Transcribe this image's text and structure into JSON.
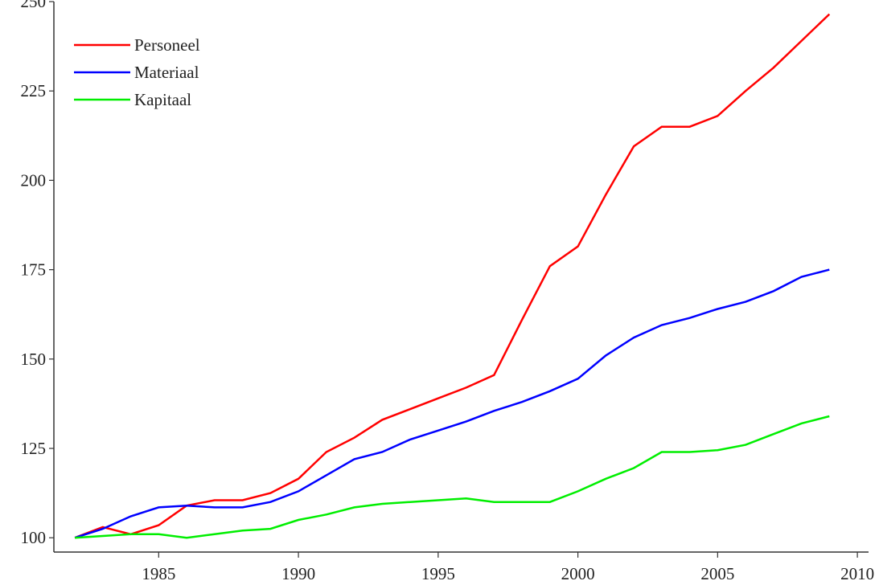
{
  "chart_data": {
    "type": "line",
    "x": [
      1982,
      1983,
      1984,
      1985,
      1986,
      1987,
      1988,
      1989,
      1990,
      1991,
      1992,
      1993,
      1994,
      1995,
      1996,
      1997,
      1998,
      1999,
      2000,
      2001,
      2002,
      2003,
      2004,
      2005,
      2006,
      2007,
      2008,
      2009
    ],
    "series": [
      {
        "name": "Personeel",
        "color": "#ff0000",
        "values": [
          100,
          103,
          101,
          103.5,
          109,
          110.5,
          110.5,
          112.5,
          116.5,
          124,
          128,
          133,
          136,
          139,
          142,
          145.5,
          161,
          176,
          181.5,
          196,
          209.5,
          215,
          215,
          218,
          225,
          231.5,
          239,
          246.5
        ]
      },
      {
        "name": "Materiaal",
        "color": "#0000ff",
        "values": [
          100,
          102.5,
          106,
          108.5,
          109,
          108.5,
          108.5,
          110,
          113,
          117.5,
          122,
          124,
          127.5,
          130,
          132.5,
          135.5,
          138,
          141,
          144.5,
          151,
          156,
          159.5,
          161.5,
          164,
          166,
          169,
          173,
          175
        ]
      },
      {
        "name": "Kapitaal",
        "color": "#00ee00",
        "values": [
          100,
          100.5,
          101,
          101,
          100,
          101,
          102,
          102.5,
          105,
          106.5,
          108.5,
          109.5,
          110,
          110.5,
          111,
          110,
          110,
          110,
          113,
          116.5,
          119.5,
          124,
          124,
          124.5,
          126,
          129,
          132,
          134
        ]
      }
    ],
    "xlim": [
      1981.25,
      2010.4
    ],
    "xticks": [
      1985,
      1990,
      1995,
      2000,
      2005,
      2010
    ],
    "ylim": [
      96,
      250
    ],
    "yticks": [
      100,
      125,
      150,
      175,
      200,
      225,
      250
    ],
    "legend": "upper-left"
  }
}
